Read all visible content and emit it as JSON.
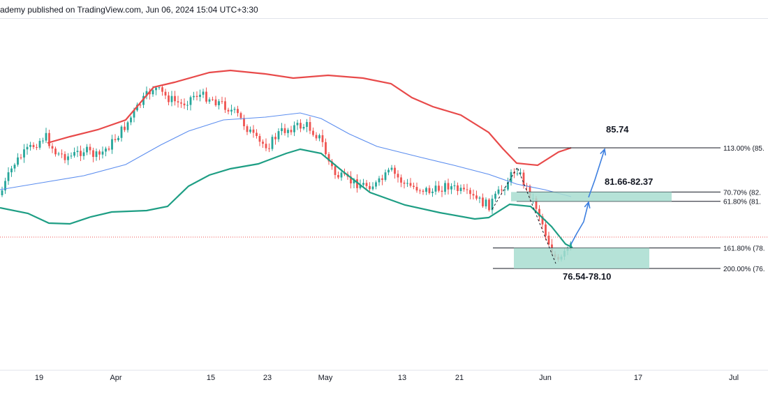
{
  "header": {
    "text": "ademy published on TradingView.com, Jun 06, 2024 15:04 UTC+3:30"
  },
  "colors": {
    "bull": "#26a69a",
    "bear": "#ef5350",
    "upper_band": "#e84a4a",
    "middle_band": "#5b8def",
    "lower_band": "#1e9e84",
    "zone_fill": "#a8ddd0",
    "arrow": "#3d7fe0"
  },
  "chart_data": {
    "type": "candlestick",
    "x_ticks": [
      "19",
      "Apr",
      "15",
      "23",
      "May",
      "13",
      "21",
      "Jun",
      "17",
      "Jul"
    ],
    "indicator": "bollinger bands",
    "close_series_estimated": [
      78.4,
      79.8,
      81.6,
      83.4,
      83.9,
      84.9,
      83.2,
      83.6,
      84.4,
      82.8,
      85.1,
      86.8,
      87.3,
      88.3,
      86.4,
      86.9,
      86.1,
      86.8,
      85.2,
      86.4,
      85.0,
      83.5,
      82.6,
      83.2,
      84.8,
      84.4,
      85.3,
      85.9,
      85.6,
      84.4,
      82.6,
      81.3,
      81.0,
      80.5,
      80.0,
      80.7,
      81.5,
      81.0,
      80.4,
      80.9,
      80.0,
      79.5,
      81.0,
      80.7,
      81.2,
      80.5,
      79.6,
      80.8,
      81.2,
      82.5,
      83.5,
      82.0,
      81.0,
      78.5,
      77.3,
      76.8,
      77.8,
      78.1
    ],
    "fib_levels": [
      {
        "label": "113.00% (85.",
        "value": 85.74
      },
      {
        "label": "70.70% (82.",
        "value": 82.37
      },
      {
        "label": "61.80% (81.",
        "value": 81.66
      },
      {
        "label": "161.80% (78.",
        "value": 78.1
      },
      {
        "label": "200.00% (76.",
        "value": 76.54
      }
    ],
    "zones": [
      {
        "label": "81.66-82.37",
        "low": 81.66,
        "high": 82.37
      },
      {
        "label": "76.54-78.10",
        "low": 76.54,
        "high": 78.1
      }
    ],
    "target_label": "85.74",
    "target_value": 85.74
  }
}
